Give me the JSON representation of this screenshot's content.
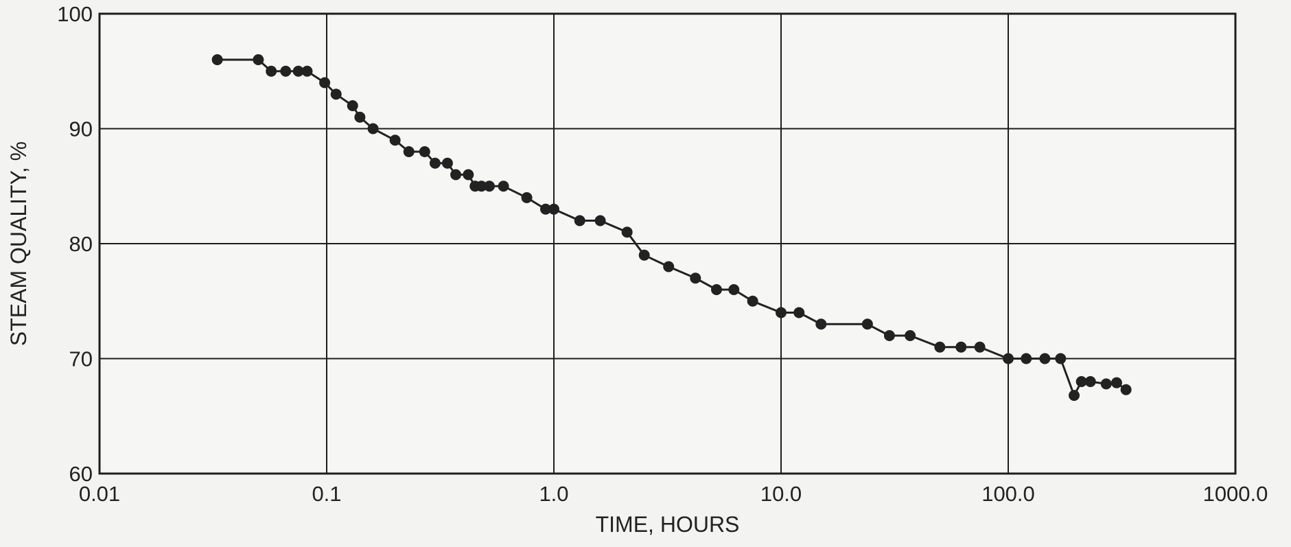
{
  "chart_data": {
    "type": "line",
    "title": "",
    "xlabel": "TIME, HOURS",
    "ylabel": "STEAM QUALITY, %",
    "x_scale": "log",
    "xlim": [
      0.01,
      1000.0
    ],
    "ylim": [
      60,
      100
    ],
    "grid": true,
    "x_ticks": [
      0.01,
      0.1,
      1.0,
      10.0,
      100.0,
      1000.0
    ],
    "x_tick_labels": [
      "0.01",
      "0.1",
      "1.0",
      "10.0",
      "100.0",
      "1000.0"
    ],
    "y_ticks": [
      60,
      70,
      80,
      90,
      100
    ],
    "y_tick_labels": [
      "60",
      "70",
      "80",
      "90",
      "100"
    ],
    "series": [
      {
        "color": "#222222",
        "x": [
          0.033,
          0.05,
          0.057,
          0.066,
          0.075,
          0.082,
          0.098,
          0.11,
          0.13,
          0.14,
          0.16,
          0.2,
          0.23,
          0.27,
          0.3,
          0.34,
          0.37,
          0.42,
          0.45,
          0.48,
          0.52,
          0.6,
          0.76,
          0.92,
          1.0,
          1.3,
          1.6,
          2.1,
          2.5,
          3.2,
          4.2,
          5.2,
          6.2,
          7.5,
          10.0,
          12.0,
          15.0,
          24.0,
          30.0,
          37.0,
          50.0,
          62.0,
          75.0,
          100.0,
          120.0,
          145.0,
          170.0,
          195.0,
          210.0,
          230.0,
          270.0,
          300.0,
          330.0
        ],
        "y": [
          96,
          96,
          95,
          95,
          95,
          95,
          94,
          93,
          92,
          91,
          90,
          89,
          88,
          88,
          87,
          87,
          86,
          86,
          85,
          85,
          85,
          85,
          84,
          83,
          83,
          82,
          82,
          81,
          79,
          78,
          77,
          76,
          76,
          75,
          74,
          74,
          73,
          73,
          72,
          72,
          71,
          71,
          71,
          70,
          70,
          70,
          70,
          66.8,
          68,
          68,
          67.8,
          67.9,
          67.3
        ]
      }
    ]
  }
}
